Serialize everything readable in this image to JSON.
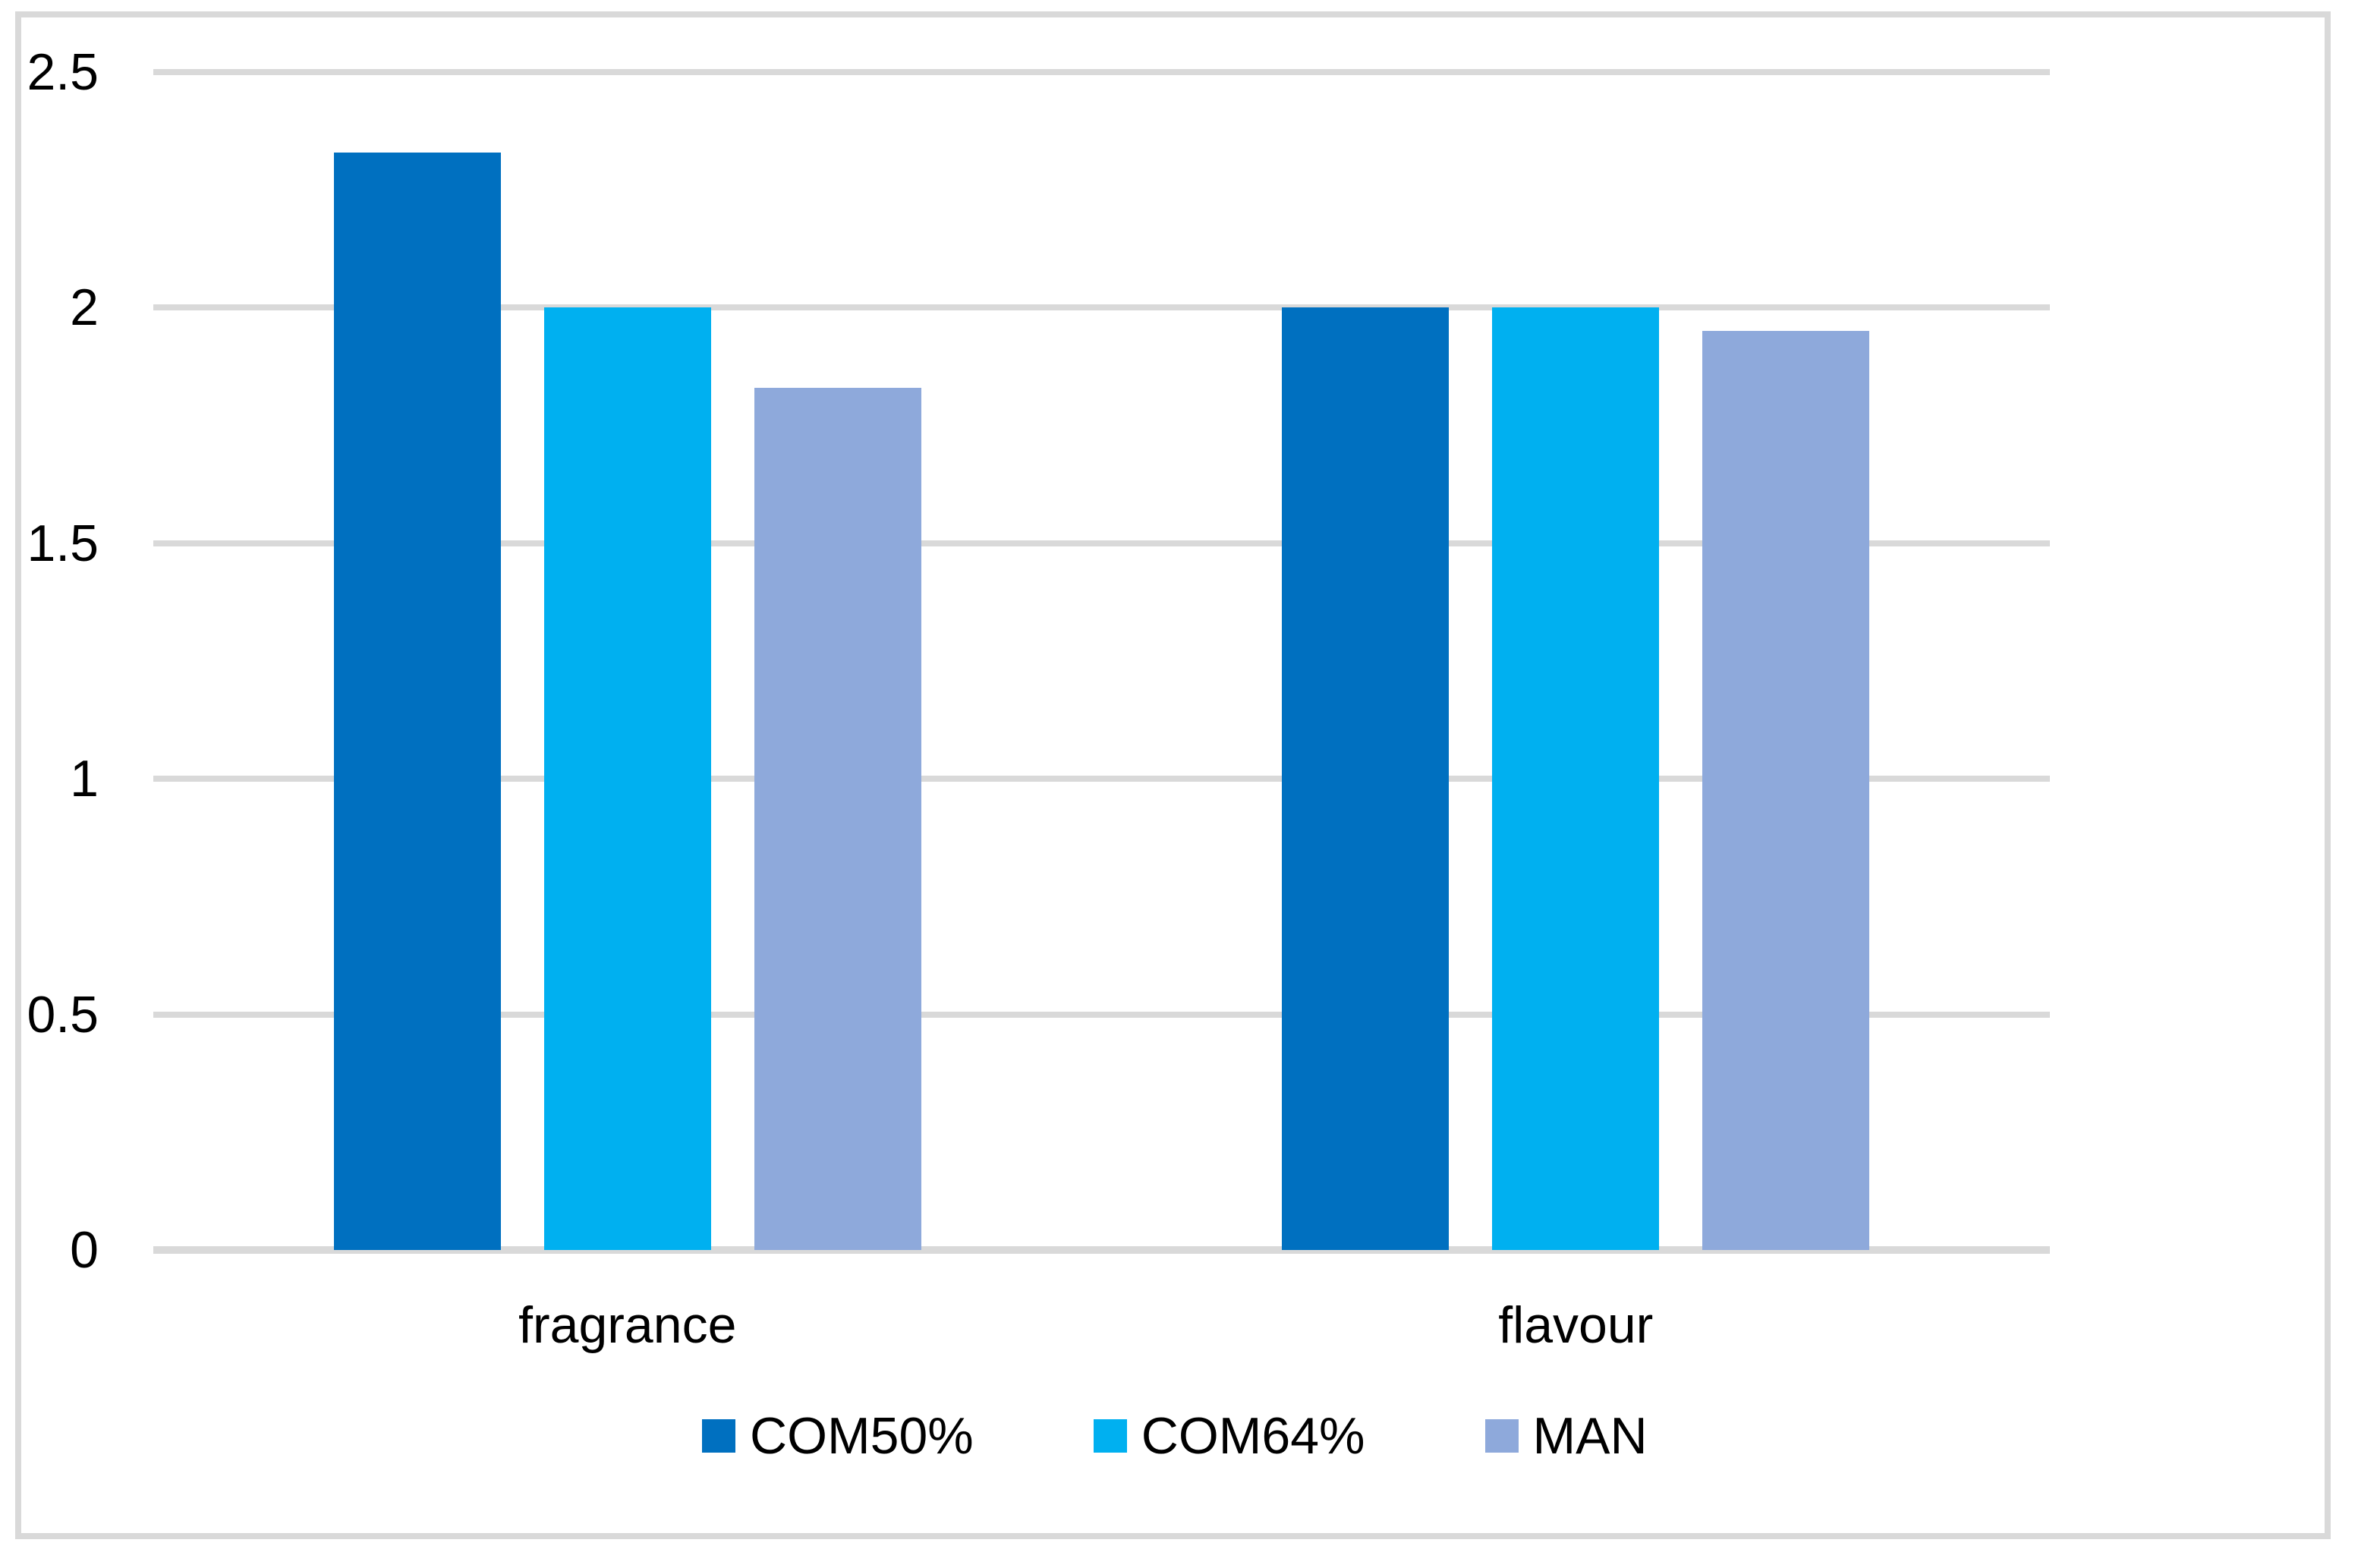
{
  "chart_data": {
    "type": "bar",
    "title": "",
    "xlabel": "",
    "ylabel": "",
    "categories": [
      "fragrance",
      "flavour"
    ],
    "series": [
      {
        "name": "COM50%",
        "color": "#0070C0",
        "values": [
          2.33,
          2.0
        ]
      },
      {
        "name": "COM64%",
        "color": "#00B0F0",
        "values": [
          2.0,
          2.0
        ]
      },
      {
        "name": "MAN",
        "color": "#8EA9DB",
        "values": [
          1.83,
          1.95
        ]
      }
    ],
    "ylim": [
      0,
      2.5
    ],
    "yticks": [
      0,
      0.5,
      1,
      1.5,
      2,
      2.5
    ],
    "ytick_labels": [
      "0",
      "0.5",
      "1",
      "1.5",
      "2",
      "2.5"
    ],
    "grid": true,
    "legend_position": "bottom",
    "colors": {
      "gridline": "#d9d9d9",
      "axis_line": "#d9d9d9",
      "frame_border": "#d9d9d9",
      "background": "#ffffff",
      "text": "#000000"
    }
  }
}
